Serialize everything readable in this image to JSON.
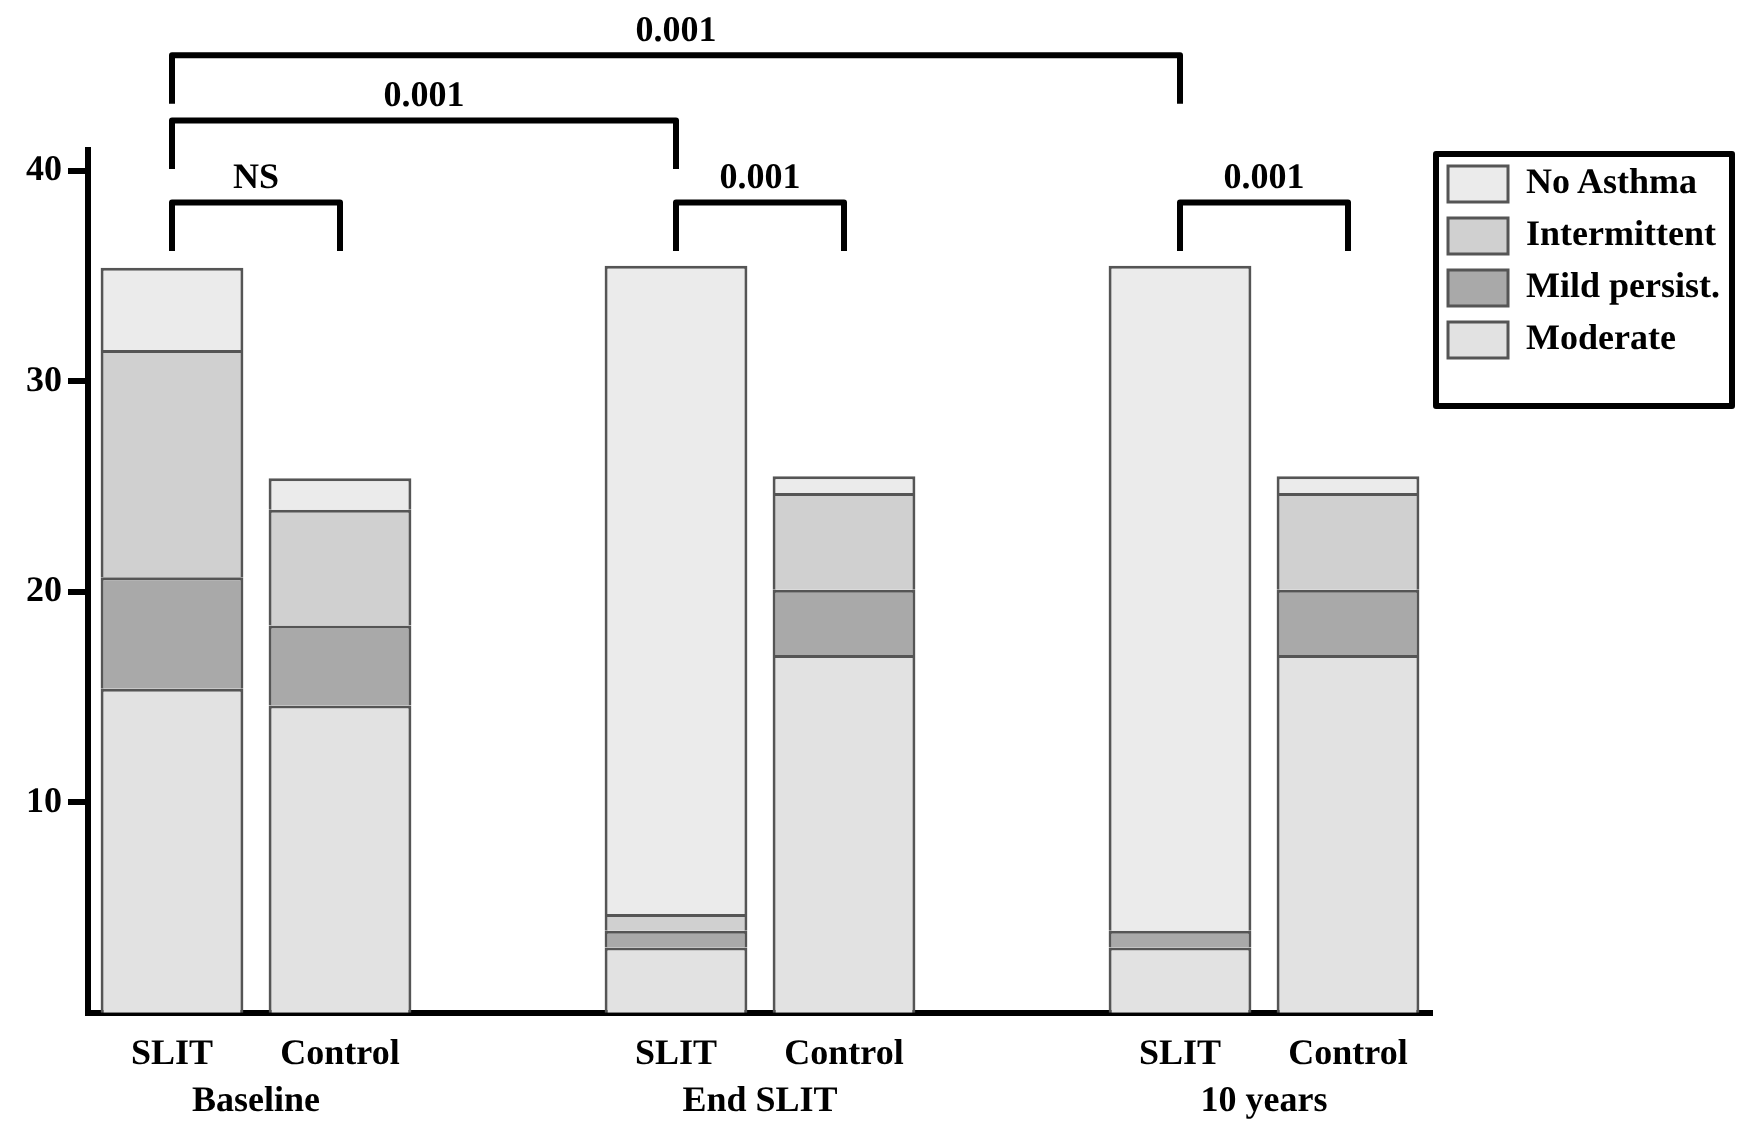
{
  "chart_data": {
    "type": "bar",
    "stacked": true,
    "categories": [
      "SLIT",
      "Control",
      null,
      "SLIT",
      "Control",
      null,
      "SLIT",
      "Control"
    ],
    "series": [
      {
        "name": "Moderate",
        "color": "#e2e2e2",
        "values": [
          15.4,
          14.6,
          null,
          3.1,
          17.0,
          null,
          3.1,
          17.0
        ]
      },
      {
        "name": "Mild persist.",
        "color": "#a9a9a9",
        "values": [
          5.3,
          3.8,
          null,
          0.8,
          3.1,
          null,
          0.8,
          3.1
        ]
      },
      {
        "name": "Intermittent",
        "color": "#d0d0d0",
        "values": [
          10.8,
          5.5,
          null,
          0.8,
          4.6,
          null,
          0,
          4.6
        ]
      },
      {
        "name": "No Asthma",
        "color": "#ebebeb",
        "values": [
          3.9,
          1.5,
          null,
          30.8,
          0.8,
          null,
          31.6,
          0.8
        ]
      }
    ],
    "ylim": [
      0,
      41
    ],
    "yticks": [
      10,
      20,
      30,
      40
    ],
    "grid": false,
    "legend": "top right",
    "annotations": [
      "0.001",
      "0.001",
      "NS",
      "0.001",
      "0.001",
      "Baseline",
      "End SLIT",
      "10 years"
    ]
  }
}
